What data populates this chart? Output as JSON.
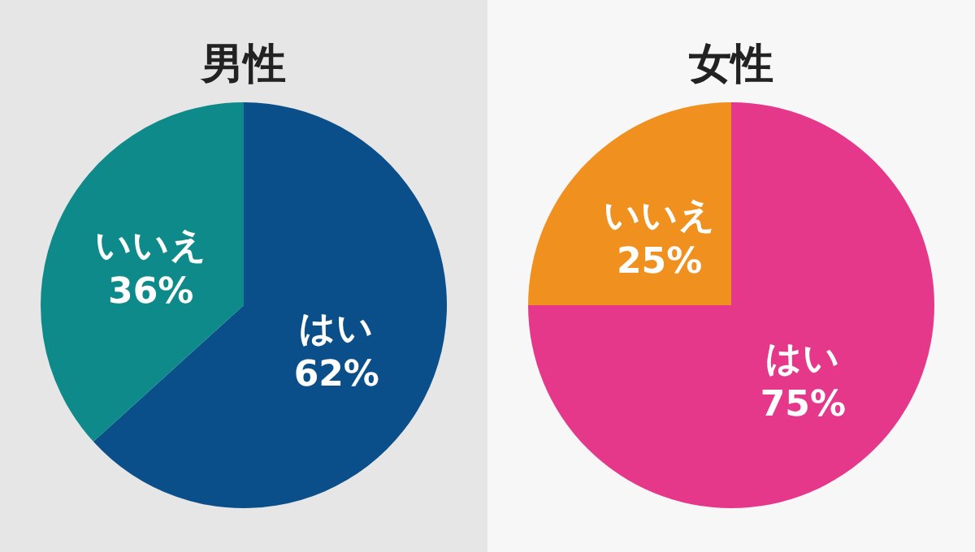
{
  "chart_data": [
    {
      "type": "pie",
      "title": "男性",
      "categories": [
        "はい",
        "いいえ"
      ],
      "values": [
        62,
        36
      ],
      "colors": [
        "#0a4f8a",
        "#0f8a8a"
      ],
      "value_labels": [
        "62%",
        "36%"
      ]
    },
    {
      "type": "pie",
      "title": "女性",
      "categories": [
        "はい",
        "いいえ"
      ],
      "values": [
        75,
        25
      ],
      "colors": [
        "#e6388a",
        "#f0901e"
      ],
      "value_labels": [
        "75%",
        "25%"
      ]
    }
  ]
}
